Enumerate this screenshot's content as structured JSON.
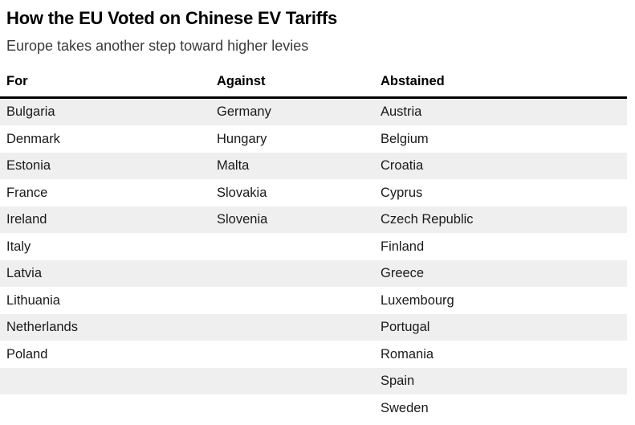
{
  "chart_data": {
    "type": "table",
    "title": "How the EU Voted on Chinese EV Tariffs",
    "subtitle": "Europe takes another step toward higher levies",
    "columns": [
      "For",
      "Against",
      "Abstained"
    ],
    "rows": [
      [
        "Bulgaria",
        "Germany",
        "Austria"
      ],
      [
        "Denmark",
        "Hungary",
        "Belgium"
      ],
      [
        "Estonia",
        "Malta",
        "Croatia"
      ],
      [
        "France",
        "Slovakia",
        "Cyprus"
      ],
      [
        "Ireland",
        "Slovenia",
        "Czech Republic"
      ],
      [
        "Italy",
        "",
        "Finland"
      ],
      [
        "Latvia",
        "",
        "Greece"
      ],
      [
        "Lithuania",
        "",
        "Luxembourg"
      ],
      [
        "Netherlands",
        "",
        "Portugal"
      ],
      [
        "Poland",
        "",
        "Romania"
      ],
      [
        "",
        "",
        "Spain"
      ],
      [
        "",
        "",
        "Sweden"
      ]
    ],
    "counts": {
      "for": 10,
      "against": 5,
      "abstained": 12
    },
    "layout": {
      "striped": true,
      "first_row_shaded": true,
      "header_rule": true
    }
  },
  "colors": {
    "background": "#ffffff",
    "title_text": "#000000",
    "subtitle_text": "#3a3a3a",
    "header_text": "#000000",
    "cell_text": "#1a1a1a",
    "row_alt_background": "#efefef",
    "header_rule": "#000000"
  }
}
